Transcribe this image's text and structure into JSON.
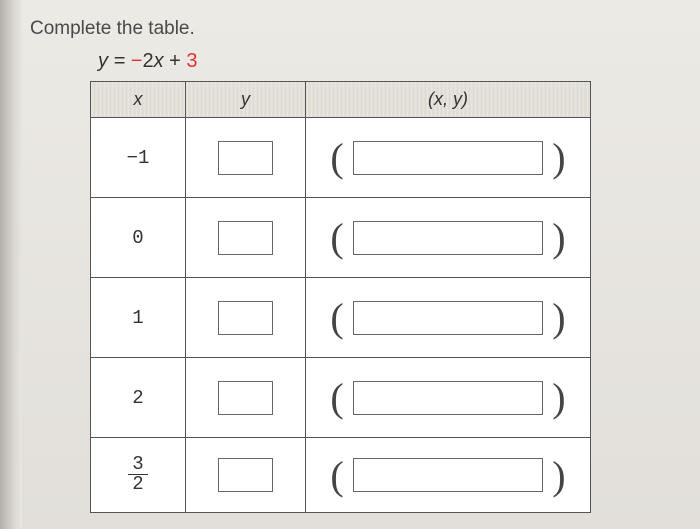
{
  "prompt": "Complete the table.",
  "equation": {
    "lhs": "y",
    "eq": " = ",
    "coef_neg": "−",
    "coef": "2",
    "var": "x",
    "plus": " + ",
    "const": "3"
  },
  "columns": {
    "x": "x",
    "y": "y",
    "xy": "(x, y)"
  },
  "rows": [
    {
      "x": "−1",
      "y": "",
      "xy": "",
      "is_fraction": false
    },
    {
      "x": "0",
      "y": "",
      "xy": "",
      "is_fraction": false
    },
    {
      "x": "1",
      "y": "",
      "xy": "",
      "is_fraction": false
    },
    {
      "x": "2",
      "y": "",
      "xy": "",
      "is_fraction": false
    },
    {
      "x_num": "3",
      "x_den": "2",
      "y": "",
      "xy": "",
      "is_fraction": true
    }
  ],
  "style": {
    "border_color": "#555",
    "header_bg": "#e4e1db",
    "page_bg": "#e8e6e1",
    "neg_color": "#d33",
    "input_border": "#666"
  }
}
